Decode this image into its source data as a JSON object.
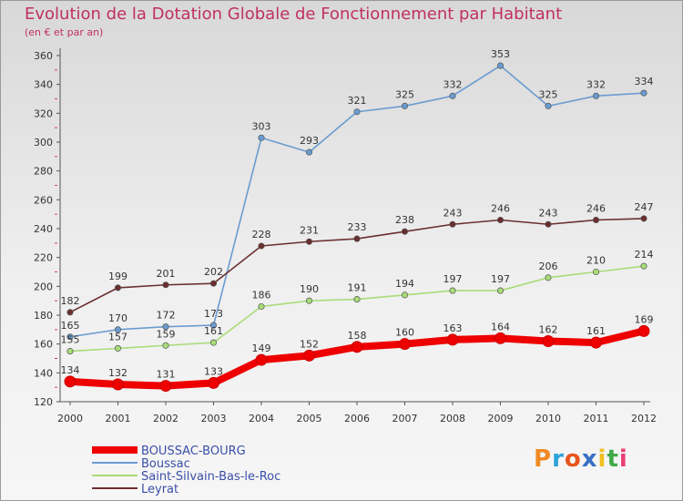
{
  "title": "Evolution de la Dotation Globale de Fonctionnement par Habitant",
  "subtitle": "(en € et par an)",
  "logo": {
    "text": "Proxiti",
    "colors": [
      "#f08a24",
      "#2aa3d8",
      "#e8551c",
      "#3a6fc4",
      "#f0c020",
      "#40a848",
      "#e84070"
    ]
  },
  "chart_data": {
    "type": "line",
    "title": "Evolution de la Dotation Globale de Fonctionnement par Habitant",
    "subtitle": "(en € et par an)",
    "x": [
      "2000",
      "2001",
      "2002",
      "2003",
      "2004",
      "2005",
      "2006",
      "2007",
      "2008",
      "2009",
      "2010",
      "2011",
      "2012"
    ],
    "ylim": [
      120,
      360
    ],
    "yticks": [
      120,
      140,
      160,
      180,
      200,
      220,
      240,
      260,
      280,
      300,
      320,
      340,
      360
    ],
    "grid": false,
    "legend": "bottom-left",
    "series": [
      {
        "name": "BOUSSAC-BOURG",
        "color": "#ee0000",
        "values": [
          134,
          132,
          131,
          133,
          149,
          152,
          158,
          160,
          163,
          164,
          162,
          161,
          169
        ]
      },
      {
        "name": "Boussac",
        "color": "#6a9cd0",
        "values": [
          165,
          170,
          172,
          173,
          303,
          293,
          321,
          325,
          332,
          353,
          325,
          332,
          334
        ]
      },
      {
        "name": "Saint-Silvain-Bas-le-Roc",
        "color": "#a8dc78",
        "values": [
          155,
          157,
          159,
          161,
          186,
          190,
          191,
          194,
          197,
          197,
          206,
          210,
          214
        ]
      },
      {
        "name": "Leyrat",
        "color": "#6b2e2e",
        "values": [
          182,
          199,
          201,
          202,
          228,
          231,
          233,
          238,
          243,
          246,
          243,
          246,
          247
        ]
      }
    ]
  }
}
